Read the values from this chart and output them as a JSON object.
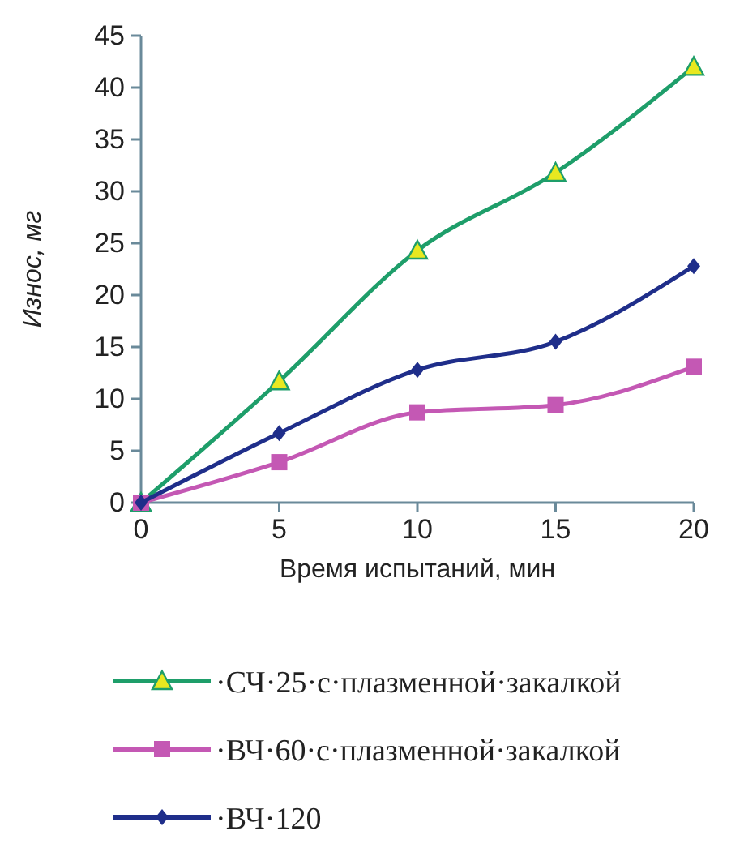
{
  "chart_data": {
    "type": "line",
    "xlabel": "Время испытаний, мин",
    "ylabel": "Износ, мг",
    "x": [
      0,
      5,
      10,
      15,
      20
    ],
    "xlim": [
      0,
      20
    ],
    "xticks": [
      0,
      5,
      10,
      15,
      20
    ],
    "ylim": [
      0,
      45
    ],
    "yticks": [
      0,
      5,
      10,
      15,
      20,
      25,
      30,
      35,
      40,
      45
    ],
    "grid": false,
    "legend": "bottom",
    "series": [
      {
        "name": "·СЧ·25·с·плазменной·закалкой",
        "color": "#1e9e6a",
        "marker": "triangle",
        "values": [
          0,
          11.7,
          24.3,
          31.8,
          42
        ]
      },
      {
        "name": "·ВЧ·60·с·плазменной·закалкой",
        "color": "#c458b4",
        "marker": "square",
        "values": [
          0,
          3.9,
          8.7,
          9.4,
          13.1
        ]
      },
      {
        "name": "·ВЧ·120",
        "color": "#1f2e8a",
        "marker": "diamond",
        "values": [
          0,
          6.7,
          12.8,
          15.5,
          22.8
        ]
      }
    ]
  }
}
